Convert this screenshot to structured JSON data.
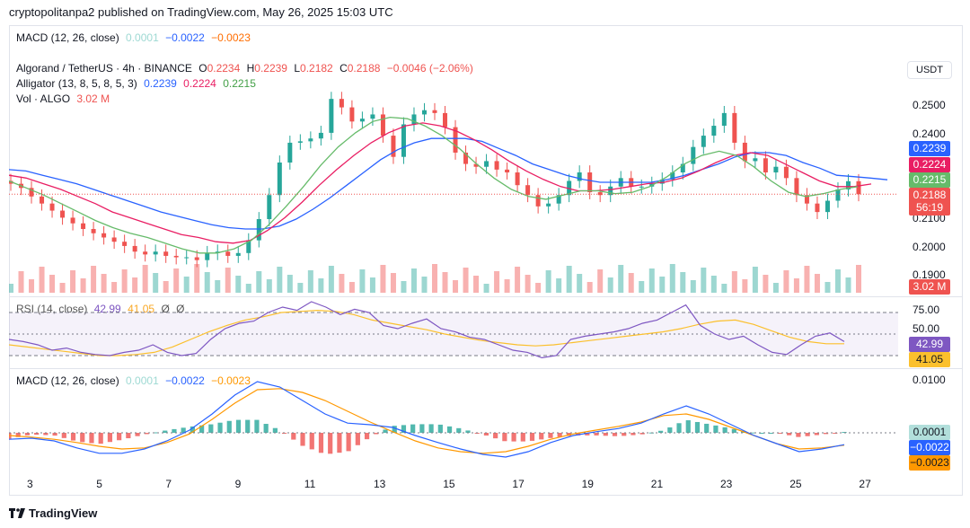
{
  "header": {
    "text": "cryptopolitanpa2 published on TradingView.com, May 26, 2025 15:03 UTC"
  },
  "top_legend": {
    "label": "MACD (12, 26, close)",
    "v1": "0.0001",
    "v2": "−0.0022",
    "v3": "−0.0023"
  },
  "main_legend": {
    "symbol": "Algorand / TetherUS · 4h · BINANCE",
    "o_label": "O",
    "o": "0.2234",
    "h_label": "H",
    "h": "0.2239",
    "l_label": "L",
    "l": "0.2182",
    "c_label": "C",
    "c": "0.2188",
    "change": "−0.0046 (−2.06%)",
    "alligator_label": "Alligator (13, 8, 5, 8, 5, 3)",
    "jaw": "0.2239",
    "teeth": "0.2224",
    "lips": "0.2215",
    "vol_label": "Vol · ALGO",
    "vol": "3.02 M"
  },
  "rsi_legend": {
    "label": "RSI (14, close)",
    "rsi": "42.99",
    "ma": "41.05",
    "z1": "Ø",
    "z2": "Ø"
  },
  "macd_legend": {
    "label": "MACD (12, 26, close)",
    "hist": "0.0001",
    "macd": "−0.0022",
    "signal": "−0.0023"
  },
  "currency_button": "USDT",
  "price_axis": [
    "0.2500",
    "0.2400",
    "0.2300",
    "0.2100",
    "0.2000",
    "0.1900"
  ],
  "price_labels": {
    "jaw": "0.2239",
    "teeth": "0.2224",
    "lips": "0.2215",
    "close": "0.2188",
    "countdown": "56:19",
    "vol": "3.02 M"
  },
  "rsi_axis": [
    "75.00",
    "50.00"
  ],
  "rsi_labels": {
    "rsi": "42.99",
    "ma": "41.05"
  },
  "macd_axis": [
    "0.0100"
  ],
  "macd_labels": {
    "hist": "0.0001",
    "macd": "−0.0022",
    "signal": "−0.0023"
  },
  "date_axis": [
    "3",
    "5",
    "7",
    "9",
    "11",
    "13",
    "15",
    "17",
    "19",
    "21",
    "23",
    "25",
    "27"
  ],
  "footer": {
    "brand": "TradingView"
  },
  "colors": {
    "up": "#26a69a",
    "down": "#ef5350",
    "jaw": "#2962ff",
    "teeth": "#e91e63",
    "lips": "#66bb6a",
    "rsi": "#7e57c2",
    "rsi_ma": "#fbc02d",
    "macd": "#2962ff",
    "signal": "#ff9800"
  },
  "chart_data": {
    "type": "candlestick",
    "ylim": [
      0.187,
      0.2555
    ],
    "x_ticks": [
      "3",
      "5",
      "7",
      "9",
      "11",
      "13",
      "15",
      "17",
      "19",
      "21",
      "23",
      "25",
      "27"
    ],
    "close_series": [
      0.2225,
      0.221,
      0.218,
      0.2155,
      0.213,
      0.2105,
      0.2085,
      0.2065,
      0.205,
      0.2035,
      0.202,
      0.2005,
      0.1985,
      0.1975,
      0.1985,
      0.197,
      0.1965,
      0.1965,
      0.1955,
      0.198,
      0.1985,
      0.197,
      0.198,
      0.2025,
      0.21,
      0.2185,
      0.23,
      0.237,
      0.2375,
      0.2385,
      0.2405,
      0.2525,
      0.2495,
      0.2445,
      0.2455,
      0.247,
      0.2395,
      0.232,
      0.2435,
      0.247,
      0.2485,
      0.2475,
      0.2425,
      0.2335,
      0.2295,
      0.2285,
      0.2305,
      0.2275,
      0.2265,
      0.222,
      0.2185,
      0.2145,
      0.2155,
      0.2185,
      0.2235,
      0.2265,
      0.2195,
      0.2185,
      0.2215,
      0.2245,
      0.2215,
      0.2215,
      0.2225,
      0.224,
      0.2265,
      0.2295,
      0.2355,
      0.2395,
      0.243,
      0.2475,
      0.237,
      0.2305,
      0.2315,
      0.2265,
      0.2285,
      0.2245,
      0.2185,
      0.2155,
      0.2125,
      0.2165,
      0.2205,
      0.2234,
      0.2188
    ],
    "alligator": {
      "jaw": [
        0.2275,
        0.227,
        0.2255,
        0.224,
        0.2225,
        0.2205,
        0.2185,
        0.2165,
        0.2145,
        0.2125,
        0.211,
        0.2095,
        0.208,
        0.207,
        0.2065,
        0.2065,
        0.2075,
        0.21,
        0.2135,
        0.2175,
        0.222,
        0.2265,
        0.231,
        0.2345,
        0.237,
        0.2385,
        0.2385,
        0.2385,
        0.2375,
        0.235,
        0.2325,
        0.2295,
        0.2275,
        0.2255,
        0.224,
        0.223,
        0.223,
        0.223,
        0.223,
        0.224,
        0.2255,
        0.2275,
        0.2295,
        0.232,
        0.2335,
        0.2335,
        0.2325,
        0.23,
        0.228,
        0.2255,
        0.225,
        0.2245,
        0.2239
      ],
      "teeth": [
        0.2255,
        0.2245,
        0.2225,
        0.2205,
        0.218,
        0.2155,
        0.2125,
        0.2105,
        0.2085,
        0.2065,
        0.2045,
        0.2035,
        0.202,
        0.2015,
        0.2025,
        0.206,
        0.2105,
        0.216,
        0.222,
        0.2275,
        0.2325,
        0.237,
        0.2405,
        0.243,
        0.244,
        0.243,
        0.241,
        0.238,
        0.2345,
        0.2305,
        0.227,
        0.224,
        0.2215,
        0.22,
        0.22,
        0.2205,
        0.2215,
        0.2225,
        0.223,
        0.2245,
        0.227,
        0.23,
        0.2325,
        0.2335,
        0.2325,
        0.2295,
        0.2265,
        0.2235,
        0.2215,
        0.2215,
        0.2224
      ],
      "lips": [
        0.2235,
        0.221,
        0.2185,
        0.2155,
        0.2125,
        0.2095,
        0.207,
        0.205,
        0.2035,
        0.2015,
        0.1995,
        0.198,
        0.198,
        0.1995,
        0.2025,
        0.208,
        0.2145,
        0.2215,
        0.229,
        0.2355,
        0.2405,
        0.2445,
        0.246,
        0.2455,
        0.243,
        0.2395,
        0.235,
        0.2295,
        0.2245,
        0.2205,
        0.218,
        0.217,
        0.2185,
        0.22,
        0.22,
        0.219,
        0.2195,
        0.2215,
        0.225,
        0.2295,
        0.2325,
        0.234,
        0.2325,
        0.2285,
        0.2235,
        0.2195,
        0.218,
        0.219,
        0.2205,
        0.2215
      ]
    },
    "volume_max_m": 20,
    "rsi": {
      "ylim": [
        25,
        85
      ],
      "levels": [
        70,
        50,
        30
      ],
      "values": [
        45,
        43,
        40,
        35,
        37,
        33,
        31,
        30,
        33,
        35,
        40,
        33,
        30,
        32,
        45,
        55,
        60,
        62,
        70,
        75,
        72,
        80,
        75,
        68,
        73,
        70,
        58,
        55,
        60,
        64,
        55,
        52,
        47,
        45,
        40,
        35,
        33,
        28,
        30,
        45,
        48,
        50,
        52,
        55,
        60,
        63,
        70,
        77,
        58,
        50,
        45,
        48,
        40,
        33,
        31,
        40,
        48,
        51,
        43
      ],
      "ma": [
        40,
        38,
        36,
        34,
        32,
        30,
        30,
        31,
        33,
        38,
        45,
        52,
        58,
        63,
        66,
        70,
        71,
        72,
        71,
        68,
        63,
        60,
        57,
        54,
        50,
        47,
        44,
        42,
        40,
        39,
        40,
        42,
        44,
        46,
        48,
        50,
        52,
        55,
        59,
        62,
        63,
        59,
        53,
        47,
        43,
        41,
        41
      ]
    },
    "macd": {
      "ylim": [
        -0.0048,
        0.0115
      ],
      "macd": [
        -0.0012,
        -0.001,
        -0.0015,
        -0.0028,
        -0.0038,
        -0.0038,
        -0.003,
        -0.0015,
        0.0005,
        0.0035,
        0.007,
        0.0095,
        0.0085,
        0.006,
        0.0035,
        0.0018,
        0.0015,
        0.001,
        -0.0005,
        -0.0018,
        -0.003,
        -0.004,
        -0.0045,
        -0.0035,
        -0.0018,
        -0.0005,
        0.0002,
        0.0008,
        0.0018,
        0.0035,
        0.005,
        0.0035,
        0.0015,
        -0.0005,
        -0.002,
        -0.0035,
        -0.003,
        -0.0022
      ],
      "signal": [
        -0.0005,
        -0.0008,
        -0.0012,
        -0.0018,
        -0.0025,
        -0.003,
        -0.0028,
        -0.0018,
        -0.0002,
        0.0025,
        0.0055,
        0.008,
        0.0082,
        0.0075,
        0.006,
        0.004,
        0.002,
        0.0002,
        -0.0015,
        -0.0028,
        -0.0035,
        -0.0038,
        -0.0035,
        -0.0025,
        -0.0012,
        -0.0002,
        0.0005,
        0.0012,
        0.002,
        0.0032,
        0.0035,
        0.0025,
        0.001,
        -0.0005,
        -0.002,
        -0.003,
        -0.0028,
        -0.0023
      ]
    }
  }
}
